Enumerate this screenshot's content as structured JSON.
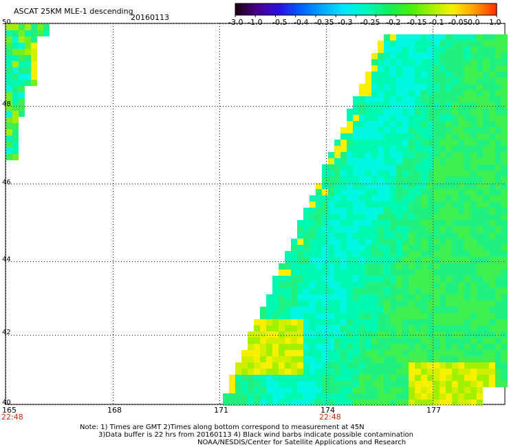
{
  "header": {
    "title": "ASCAT 25KM MLE-1 descending",
    "date": "20160113"
  },
  "colorbar": {
    "labels": [
      "-3.0",
      "-1.0",
      "-0.5",
      "-0.4",
      "-0.35",
      "-0.3",
      "-0.25",
      "-0.2",
      "-0.15",
      "-0.1",
      "-0.05",
      "0.0",
      "1.0"
    ],
    "colors": [
      "#1a0010",
      "#4a0090",
      "#2a10e0",
      "#0060ff",
      "#00a8ff",
      "#00e8ff",
      "#00f8c0",
      "#10f060",
      "#40f010",
      "#a0f000",
      "#f8f000",
      "#ffa000",
      "#ff3000"
    ]
  },
  "axes": {
    "lon_ticks": [
      "165",
      "168",
      "171",
      "174",
      "177"
    ],
    "lat_ticks": [
      "50",
      "48",
      "46",
      "44",
      "42",
      "40"
    ],
    "time_labels": [
      "22:48",
      "22:48"
    ]
  },
  "footer": {
    "line1": "Note: 1) Times are GMT 2)Times along bottom correspond to measurement at 45N",
    "line2": "3)Data buffer is 22 hrs from 20160113 4) Black wind barbs indicate possible contamination",
    "line3": "NOAA/NESDIS/Center for Satellite Applications and Research"
  }
}
